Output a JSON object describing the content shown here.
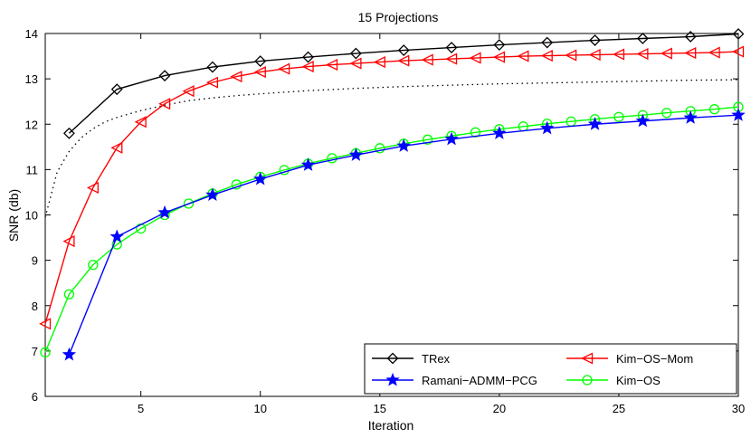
{
  "chart_data": {
    "type": "line",
    "title": "15 Projections",
    "xlabel": "Iteration",
    "ylabel": "SNR (db)",
    "xlim": [
      1,
      30
    ],
    "ylim": [
      6,
      14
    ],
    "xticks": [
      5,
      10,
      15,
      20,
      25,
      30
    ],
    "yticks": [
      6,
      7,
      8,
      9,
      10,
      11,
      12,
      13,
      14
    ],
    "grid": false,
    "legend_position": "bottom-right",
    "series": [
      {
        "name": "TRex",
        "color": "#000000",
        "marker": "diamond",
        "x": [
          2,
          4,
          6,
          8,
          10,
          12,
          14,
          16,
          18,
          20,
          22,
          24,
          26,
          28,
          30
        ],
        "y": [
          11.8,
          12.77,
          13.07,
          13.26,
          13.39,
          13.48,
          13.56,
          13.63,
          13.69,
          13.75,
          13.8,
          13.85,
          13.89,
          13.93,
          13.99
        ]
      },
      {
        "name": "Kim-OS-Mom",
        "color": "#ff0000",
        "marker": "triangle-left",
        "x": [
          1,
          2,
          3,
          4,
          5,
          6,
          7,
          8,
          9,
          10,
          11,
          12,
          13,
          14,
          15,
          16,
          17,
          18,
          19,
          20,
          21,
          22,
          23,
          24,
          25,
          26,
          27,
          28,
          29,
          30
        ],
        "y": [
          7.6,
          9.42,
          10.6,
          11.48,
          12.05,
          12.45,
          12.73,
          12.92,
          13.05,
          13.15,
          13.22,
          13.27,
          13.31,
          13.34,
          13.37,
          13.4,
          13.42,
          13.44,
          13.46,
          13.48,
          13.5,
          13.51,
          13.52,
          13.53,
          13.54,
          13.55,
          13.56,
          13.57,
          13.58,
          13.6
        ]
      },
      {
        "name": "Ramani-ADMM-PCG",
        "color": "#0000ff",
        "marker": "star",
        "x": [
          2,
          4,
          6,
          8,
          10,
          12,
          14,
          16,
          18,
          20,
          22,
          24,
          26,
          28,
          30
        ],
        "y": [
          6.92,
          9.52,
          10.05,
          10.44,
          10.79,
          11.1,
          11.32,
          11.52,
          11.67,
          11.8,
          11.91,
          12.0,
          12.07,
          12.14,
          12.2
        ]
      },
      {
        "name": "Kim-OS",
        "color": "#00ff00",
        "marker": "circle",
        "x": [
          1,
          2,
          3,
          4,
          5,
          6,
          7,
          8,
          9,
          10,
          11,
          12,
          13,
          14,
          15,
          16,
          17,
          18,
          19,
          20,
          21,
          22,
          23,
          24,
          25,
          26,
          27,
          28,
          29,
          30
        ],
        "y": [
          6.97,
          8.25,
          8.9,
          9.35,
          9.7,
          10.0,
          10.25,
          10.47,
          10.67,
          10.84,
          10.99,
          11.13,
          11.25,
          11.36,
          11.47,
          11.57,
          11.66,
          11.74,
          11.82,
          11.89,
          11.95,
          12.01,
          12.06,
          12.11,
          12.16,
          12.2,
          12.25,
          12.29,
          12.33,
          12.38
        ]
      },
      {
        "name": "",
        "color": "#000000",
        "marker": "none",
        "dashed": true,
        "x": [
          1,
          1.5,
          2,
          2.5,
          3,
          3.5,
          4,
          5,
          6,
          7,
          8,
          9,
          10,
          12,
          14,
          16,
          18,
          20,
          22,
          24,
          26,
          28,
          30
        ],
        "y": [
          9.95,
          10.95,
          11.4,
          11.7,
          11.9,
          12.05,
          12.15,
          12.3,
          12.42,
          12.52,
          12.58,
          12.63,
          12.67,
          12.74,
          12.79,
          12.83,
          12.86,
          12.89,
          12.91,
          12.93,
          12.95,
          12.97,
          12.98
        ]
      }
    ],
    "legend": [
      {
        "label": "TRex",
        "series": 0
      },
      {
        "label": "Kim−OS−Mom",
        "series": 1
      },
      {
        "label": "Ramani−ADMM−PCG",
        "series": 2
      },
      {
        "label": "Kim−OS",
        "series": 3
      }
    ]
  }
}
